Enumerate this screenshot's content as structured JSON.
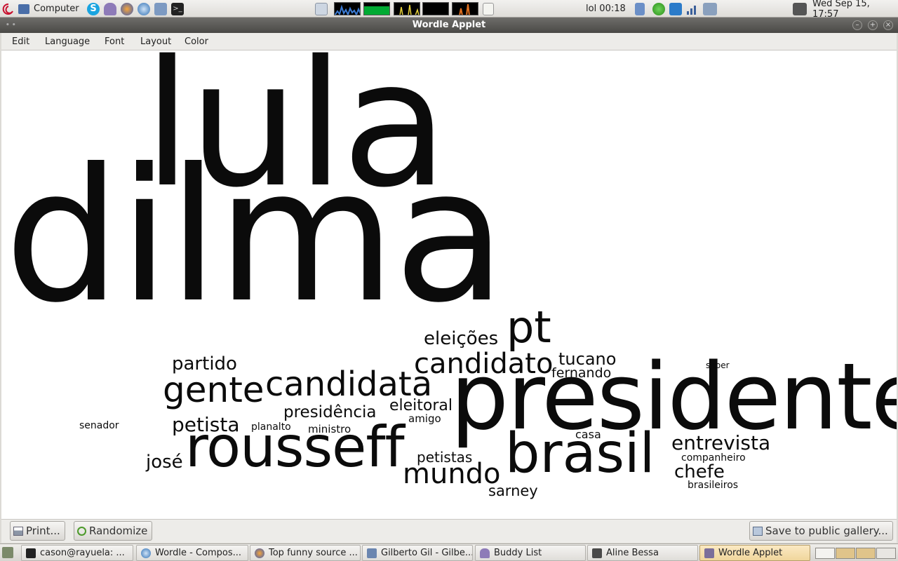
{
  "top_panel": {
    "menu_label": "Computer",
    "clock_left": "lol 00:18",
    "datetime": "Wed Sep 15, 17:57"
  },
  "window": {
    "title": "Wordle Applet",
    "menu": [
      "Edit",
      "Language",
      "Font",
      "Layout",
      "Color"
    ],
    "buttons": {
      "print": "Print...",
      "randomize": "Randomize",
      "save": "Save to public gallery..."
    }
  },
  "words": {
    "lula": "lula",
    "dilma": "dilma",
    "presidente": "presidente",
    "rousseff": "rousseff",
    "brasil": "brasil",
    "pt": "pt",
    "candidata": "candidata",
    "gente": "gente",
    "candidato": "candidato",
    "mundo": "mundo",
    "eleicoes": "eleições",
    "partido": "partido",
    "petista": "petista",
    "presidencia": "presidência",
    "eleitoral": "eleitoral",
    "jose": "josé",
    "tucano": "tucano",
    "fernando": "fernando",
    "entrevista": "entrevista",
    "chefe": "chefe",
    "petistas": "petistas",
    "sarney": "sarney",
    "senador": "senador",
    "planalto": "planalto",
    "ministro": "ministro",
    "amigo": "amigo",
    "casa": "casa",
    "companheiro": "companheiro",
    "brasileiros": "brasileiros",
    "saber": "saber"
  },
  "taskbar": {
    "tasks": [
      "cason@rayuela: ...",
      "Wordle - Compos...",
      "Top funny source ...",
      "Gilberto Gil - Gilbe...",
      "Buddy List",
      "Aline Bessa",
      "Wordle Applet"
    ]
  },
  "icons": {
    "debian": "debian-swirl-icon",
    "computer": "computer-icon",
    "skype": "skype-icon",
    "pidgin": "pidgin-icon",
    "browser": "browser-icon",
    "terminal": "terminal-icon",
    "network": "network-icon",
    "volume": "volume-icon",
    "battery": "battery-icon"
  },
  "colors": {
    "word": "#0b0b0b",
    "active_task": "#f0d69c",
    "titlebar": "#4a4946"
  }
}
